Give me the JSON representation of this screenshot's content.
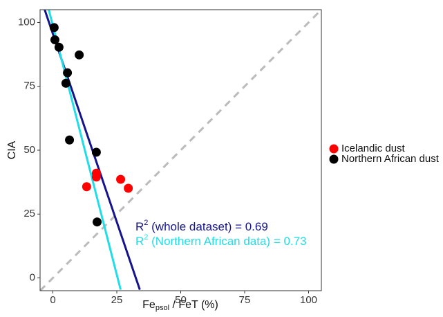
{
  "chart_data": {
    "type": "scatter",
    "y_label": "CIA",
    "x_label": {
      "base": "Fe",
      "sub": "psol",
      "rest": " / FeT (%)"
    },
    "xlim": [
      -5,
      105
    ],
    "ylim": [
      -5,
      105
    ],
    "xticks": [
      0,
      25,
      50,
      75,
      100
    ],
    "yticks": [
      0,
      25,
      50,
      75,
      100
    ],
    "grid": false,
    "legend": "right",
    "series": [
      {
        "name": "Icelandic dust",
        "color": "#ff0000",
        "x": [
          13.2,
          17,
          17,
          26.5,
          29.5
        ],
        "values": [
          35.7,
          41,
          39.5,
          38.6,
          35.1
        ]
      },
      {
        "name": "Northern African dust",
        "color": "#000000",
        "x": [
          0.5,
          0.8,
          2.4,
          10.3,
          5.7,
          5.1,
          6.5,
          17,
          17.3
        ],
        "values": [
          98,
          93.2,
          90.3,
          87.3,
          80.3,
          76.2,
          54,
          49.2,
          21.9
        ]
      }
    ],
    "reference_line": {
      "color": "#bbbbbb",
      "x": [
        -5,
        105
      ],
      "values": [
        -5,
        105
      ]
    },
    "fits": [
      {
        "color": "#14148c",
        "x": [
          -3.2,
          34
        ],
        "values": [
          105,
          -4.6
        ]
      },
      {
        "color": "#22dde6",
        "x": [
          -1.6,
          26.5
        ],
        "values": [
          105,
          -4.6
        ]
      }
    ],
    "annotations": [
      {
        "base": "R",
        "sup": "2",
        "text": " (whole dataset) = 0.69",
        "color": "#14148c"
      },
      {
        "base": "R",
        "sup": "2",
        "text": " (Northern African data) = 0.73",
        "color": "#22dde6"
      }
    ]
  }
}
